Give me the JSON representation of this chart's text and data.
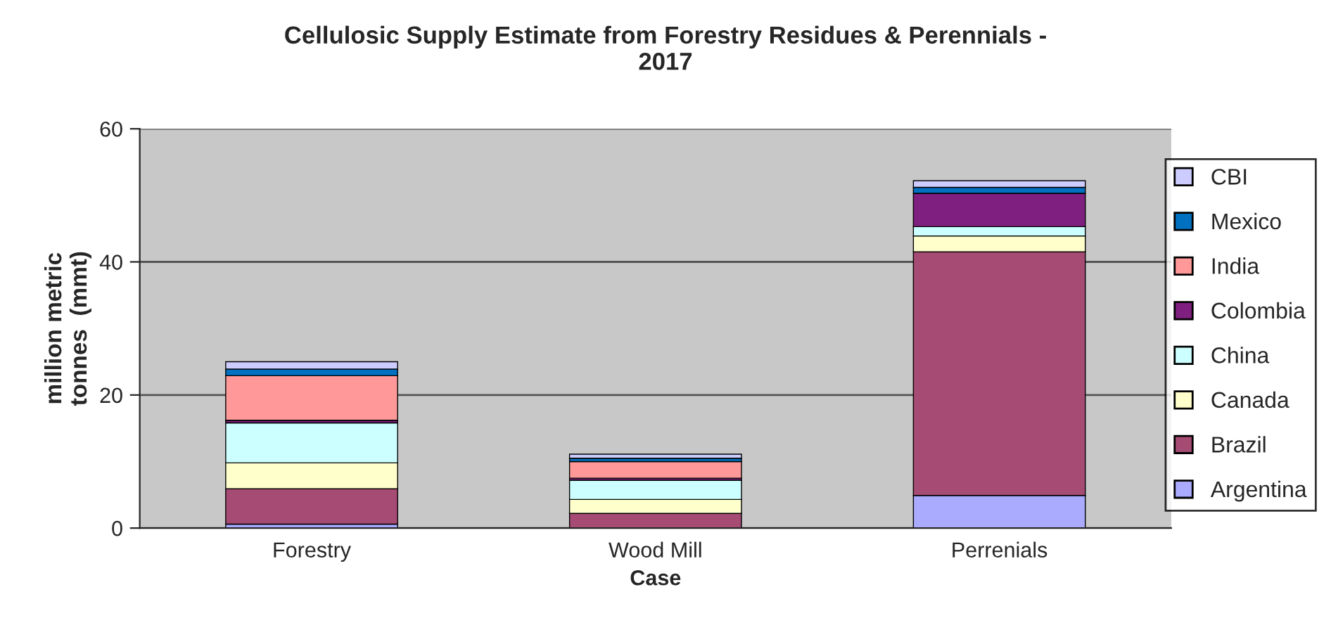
{
  "chart_data": {
    "type": "bar",
    "stacked": true,
    "title": "Cellulosic Supply Estimate from Forestry Residues & Perennials -\n2017",
    "xlabel": "Case",
    "ylabel": "million metric\ntonnes  (mmt)",
    "categories": [
      "Forestry",
      "Wood Mill",
      "Perrenials"
    ],
    "series": [
      {
        "name": "Argentina",
        "color": "#aaaaff",
        "values": [
          0.6,
          null,
          4.9
        ]
      },
      {
        "name": "Brazil",
        "color": "#a64b74",
        "values": [
          5.3,
          2.2,
          36.6
        ]
      },
      {
        "name": "Canada",
        "color": "#ffffcc",
        "values": [
          3.9,
          2.1,
          2.4
        ]
      },
      {
        "name": "China",
        "color": "#ccffff",
        "values": [
          6.0,
          2.9,
          1.4
        ]
      },
      {
        "name": "Colombia",
        "color": "#7f1f7f",
        "values": [
          0.4,
          0.3,
          5.0
        ]
      },
      {
        "name": "India",
        "color": "#ff9999",
        "values": [
          6.7,
          2.5,
          0.0
        ]
      },
      {
        "name": "Mexico",
        "color": "#0070c0",
        "values": [
          1.0,
          0.5,
          0.9
        ]
      },
      {
        "name": "CBI",
        "color": "#ccccff",
        "values": [
          1.1,
          0.6,
          1.0
        ]
      }
    ],
    "ylim": [
      0,
      60
    ],
    "yticks": [
      0,
      20,
      40,
      60
    ],
    "grid": "y",
    "legend": "right"
  }
}
